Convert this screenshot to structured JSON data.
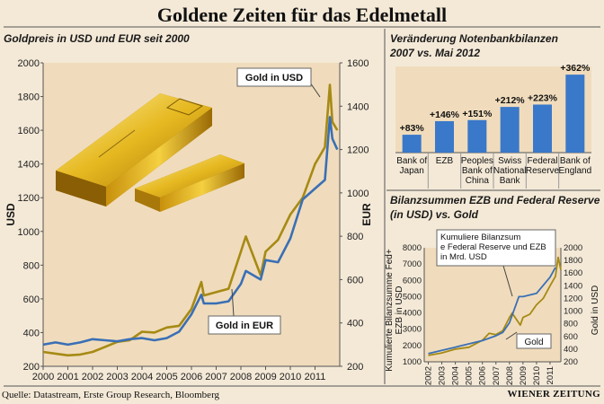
{
  "title": "Goldene Zeiten für das Edelmetall",
  "source": "Quelle: Datastream, Erste Group Research, Bloomberg",
  "brand": "WIENER ZEITUNG",
  "colors": {
    "gold": "#a68a14",
    "blue": "#3a6fb5",
    "bar": "#3a78c9",
    "panel": "#f0dcbc",
    "background": "#f4e9d7"
  },
  "icons": {
    "gold_bars": "gold-bars-illustration"
  },
  "chart_data": [
    {
      "type": "line",
      "title": "Goldpreis in USD und EUR seit 2000",
      "ylabel_left": "USD",
      "ylabel_right": "EUR",
      "x_ticks": [
        "2000",
        "2001",
        "2002",
        "2003",
        "2004",
        "2005",
        "2006",
        "2007",
        "2008",
        "2009",
        "2010",
        "2011"
      ],
      "yticks_left": [
        "2000",
        "1800",
        "1600",
        "1400",
        "1200",
        "1000",
        "800",
        "600",
        "400",
        "200"
      ],
      "yticks_right": [
        "1600",
        "1400",
        "1200",
        "1000",
        "800",
        "600",
        "400",
        "200"
      ],
      "ylim_left": [
        200,
        2000
      ],
      "ylim_right": [
        200,
        1600
      ],
      "series": [
        {
          "name": "Gold in USD",
          "axis": "left",
          "x": [
            2000,
            2000.5,
            2001,
            2001.5,
            2002,
            2002.5,
            2003,
            2003.5,
            2004,
            2004.5,
            2005,
            2005.5,
            2006,
            2006.4,
            2006.5,
            2007,
            2007.5,
            2008,
            2008.2,
            2008.8,
            2009,
            2009.5,
            2010,
            2010.5,
            2011,
            2011.4,
            2011.6,
            2011.7,
            2011.9
          ],
          "y": [
            285,
            275,
            265,
            270,
            285,
            315,
            345,
            355,
            405,
            400,
            430,
            440,
            540,
            700,
            620,
            640,
            660,
            880,
            970,
            740,
            880,
            950,
            1100,
            1200,
            1400,
            1500,
            1870,
            1650,
            1600
          ]
        },
        {
          "name": "Gold in EUR",
          "axis": "right",
          "x": [
            2000,
            2000.5,
            2001,
            2001.5,
            2002,
            2002.5,
            2003,
            2003.5,
            2004,
            2004.5,
            2005,
            2005.5,
            2006,
            2006.4,
            2006.5,
            2007,
            2007.5,
            2008,
            2008.2,
            2008.8,
            2009,
            2009.5,
            2010,
            2010.5,
            2011,
            2011.4,
            2011.6,
            2011.7,
            2011.9
          ],
          "y": [
            300,
            310,
            300,
            310,
            325,
            320,
            315,
            325,
            330,
            320,
            330,
            360,
            440,
            530,
            490,
            490,
            500,
            580,
            640,
            600,
            690,
            680,
            790,
            970,
            1020,
            1060,
            1350,
            1250,
            1200
          ]
        }
      ]
    },
    {
      "type": "bar",
      "title": "Veränderung Notenbankbilanzen",
      "subtitle": "2007 vs. Mai 2012",
      "categories": [
        [
          "Bank of",
          "Japan"
        ],
        [
          "EZB"
        ],
        [
          "Peoples",
          "Bank of",
          "China"
        ],
        [
          "Swiss",
          "National",
          "Bank"
        ],
        [
          "Federal",
          "Reserve"
        ],
        [
          "Bank of",
          "England"
        ]
      ],
      "values": [
        83,
        146,
        151,
        212,
        223,
        362
      ],
      "labels": [
        "+83%",
        "+146%",
        "+151%",
        "+212%",
        "+223%",
        "+362%"
      ]
    },
    {
      "type": "line",
      "title": "Bilanzsummen EZB und Federal Reserve",
      "subtitle": "(in USD) vs. Gold",
      "ylabel_left": [
        "Kumulierte Bilanzsumme Fed+",
        "EZB in USD"
      ],
      "ylabel_right": "Gold in USD",
      "x_ticks": [
        "2002",
        "2003",
        "2004",
        "2005",
        "2006",
        "2007",
        "2008",
        "2009",
        "2010",
        "2011"
      ],
      "yticks_left": [
        "8000",
        "7000",
        "6000",
        "5000",
        "4000",
        "3000",
        "2000",
        "1000"
      ],
      "yticks_right": [
        "2000",
        "1800",
        "1600",
        "1400",
        "1200",
        "1000",
        "800",
        "600",
        "400",
        "200"
      ],
      "ylim_left": [
        1000,
        8000
      ],
      "ylim_right": [
        200,
        2000
      ],
      "series": [
        {
          "name": "Kumuliere Bilanzsumme Federal Reserve und EZB in Mrd. USD",
          "axis": "left",
          "x": [
            2002,
            2003,
            2004,
            2005,
            2006,
            2007,
            2007.5,
            2008,
            2008.7,
            2009,
            2010,
            2011,
            2011.4
          ],
          "y": [
            1500,
            1700,
            1900,
            2100,
            2300,
            2600,
            2800,
            3400,
            5000,
            5000,
            5200,
            6200,
            6800
          ]
        },
        {
          "name": "Gold",
          "axis": "right",
          "x": [
            2002,
            2003,
            2004,
            2005,
            2006,
            2006.5,
            2007,
            2007.5,
            2008,
            2008.2,
            2008.8,
            2009,
            2009.5,
            2010,
            2010.5,
            2011,
            2011.4,
            2011.6,
            2011.8
          ],
          "y": [
            300,
            340,
            400,
            430,
            540,
            650,
            630,
            690,
            900,
            970,
            780,
            900,
            950,
            1100,
            1200,
            1400,
            1550,
            1850,
            1650
          ]
        }
      ]
    }
  ]
}
